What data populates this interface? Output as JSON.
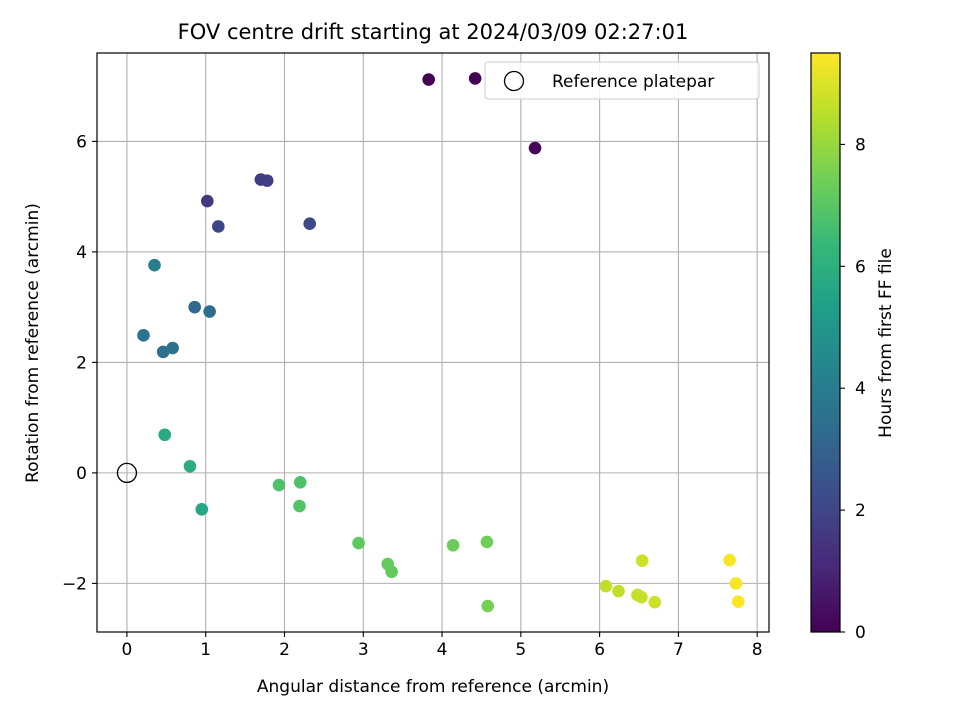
{
  "chart_data": {
    "type": "scatter",
    "title": "FOV centre drift starting at 2024/03/09 02:27:01",
    "xlabel": "Angular distance from reference (arcmin)",
    "ylabel": "Rotation from reference (arcmin)",
    "xlim": [
      -0.38,
      8.15
    ],
    "ylim": [
      -2.88,
      7.6
    ],
    "xticks": [
      0,
      1,
      2,
      3,
      4,
      5,
      6,
      7,
      8
    ],
    "yticks": [
      -2,
      0,
      2,
      4,
      6
    ],
    "xtick_labels": [
      "0",
      "1",
      "2",
      "3",
      "4",
      "5",
      "6",
      "7",
      "8"
    ],
    "ytick_labels": [
      "−2",
      "0",
      "2",
      "4",
      "6"
    ],
    "grid": true,
    "legend": {
      "position": "top-right",
      "entries": [
        "Reference platepar"
      ]
    },
    "reference_point": {
      "name": "Reference platepar",
      "x": 0,
      "y": 0
    },
    "colorbar": {
      "label": "Hours from first FF file",
      "min": 0,
      "max": 9.5,
      "ticks": [
        0,
        2,
        4,
        6,
        8
      ],
      "tick_labels": [
        "0",
        "2",
        "4",
        "6",
        "8"
      ],
      "colormap": "viridis"
    },
    "colormap_stops": [
      "#440154",
      "#482878",
      "#3e4989",
      "#31688e",
      "#26828e",
      "#1f9e89",
      "#35b779",
      "#6ece58",
      "#b5de2b",
      "#fde725"
    ],
    "points": [
      {
        "x": 3.83,
        "y": 7.12,
        "c": 0.0
      },
      {
        "x": 4.42,
        "y": 7.14,
        "c": 0.1
      },
      {
        "x": 5.18,
        "y": 5.88,
        "c": 0.2
      },
      {
        "x": 1.02,
        "y": 4.92,
        "c": 1.6
      },
      {
        "x": 1.7,
        "y": 5.31,
        "c": 1.7
      },
      {
        "x": 1.78,
        "y": 5.29,
        "c": 1.8
      },
      {
        "x": 1.16,
        "y": 4.46,
        "c": 2.0
      },
      {
        "x": 2.32,
        "y": 4.51,
        "c": 2.1
      },
      {
        "x": 0.35,
        "y": 3.76,
        "c": 4.0
      },
      {
        "x": 0.86,
        "y": 3.0,
        "c": 3.3
      },
      {
        "x": 1.05,
        "y": 2.92,
        "c": 3.4
      },
      {
        "x": 0.21,
        "y": 2.49,
        "c": 3.6
      },
      {
        "x": 0.46,
        "y": 2.19,
        "c": 3.5
      },
      {
        "x": 0.58,
        "y": 2.26,
        "c": 3.6
      },
      {
        "x": 0.48,
        "y": 0.69,
        "c": 5.7
      },
      {
        "x": 0.8,
        "y": 0.12,
        "c": 5.9
      },
      {
        "x": 0.95,
        "y": -0.66,
        "c": 5.6
      },
      {
        "x": 1.93,
        "y": -0.22,
        "c": 6.8
      },
      {
        "x": 2.2,
        "y": -0.17,
        "c": 6.8
      },
      {
        "x": 2.19,
        "y": -0.6,
        "c": 6.9
      },
      {
        "x": 2.94,
        "y": -1.27,
        "c": 7.1
      },
      {
        "x": 3.31,
        "y": -1.65,
        "c": 7.2
      },
      {
        "x": 3.36,
        "y": -1.79,
        "c": 7.2
      },
      {
        "x": 4.14,
        "y": -1.31,
        "c": 7.3
      },
      {
        "x": 4.57,
        "y": -1.25,
        "c": 7.4
      },
      {
        "x": 4.58,
        "y": -2.41,
        "c": 7.5
      },
      {
        "x": 6.08,
        "y": -2.05,
        "c": 8.6
      },
      {
        "x": 6.24,
        "y": -2.14,
        "c": 8.6
      },
      {
        "x": 6.48,
        "y": -2.21,
        "c": 8.7
      },
      {
        "x": 6.53,
        "y": -2.25,
        "c": 8.7
      },
      {
        "x": 6.54,
        "y": -1.59,
        "c": 8.8
      },
      {
        "x": 6.7,
        "y": -2.34,
        "c": 8.8
      },
      {
        "x": 7.65,
        "y": -1.58,
        "c": 9.4
      },
      {
        "x": 7.73,
        "y": -2.0,
        "c": 9.4
      },
      {
        "x": 7.76,
        "y": -2.33,
        "c": 9.5
      }
    ]
  }
}
